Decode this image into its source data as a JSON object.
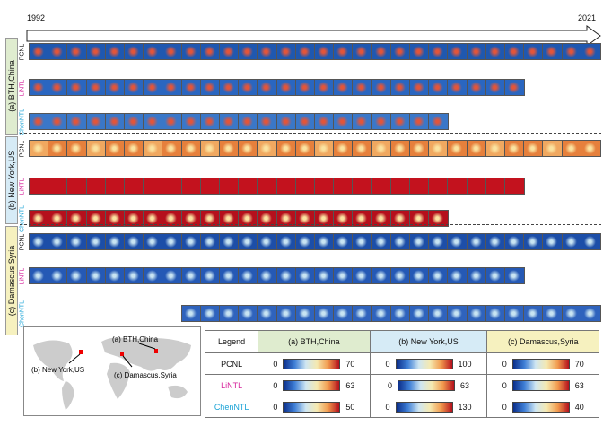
{
  "timeline": {
    "start_year": "1992",
    "end_year": "2021"
  },
  "regions": [
    {
      "label": "(a) BTH,China",
      "bg": "#dfeccf"
    },
    {
      "label": "(b) New York,US",
      "bg": "#d6ebf6"
    },
    {
      "label": "(c) Damascus,Syria",
      "bg": "#f6f1bf"
    }
  ],
  "datasets": [
    {
      "name": "PCNL",
      "color": "#111111"
    },
    {
      "name": "LiNTL",
      "color": "#d6249c"
    },
    {
      "name": "ChenNTL",
      "color": "#1aa3d6"
    }
  ],
  "map": {
    "labels": [
      "(a) BTH,China",
      "(b) New York,US",
      "(c) Damascus,Syria"
    ]
  },
  "legend": {
    "header": "Legend",
    "columns": [
      "(a) BTH,China",
      "(b) New York,US",
      "(c) Damascus,Syria"
    ],
    "rows": [
      {
        "name": "PCNL",
        "color": "#111111",
        "ranges": [
          [
            "0",
            "70"
          ],
          [
            "0",
            "100"
          ],
          [
            "0",
            "70"
          ]
        ]
      },
      {
        "name": "LiNTL",
        "color": "#d6249c",
        "ranges": [
          [
            "0",
            "63"
          ],
          [
            "0",
            "63"
          ],
          [
            "0",
            "63"
          ]
        ]
      },
      {
        "name": "ChenNTL",
        "color": "#1aa3d6",
        "ranges": [
          [
            "0",
            "50"
          ],
          [
            "0",
            "130"
          ],
          [
            "0",
            "40"
          ]
        ]
      }
    ]
  }
}
